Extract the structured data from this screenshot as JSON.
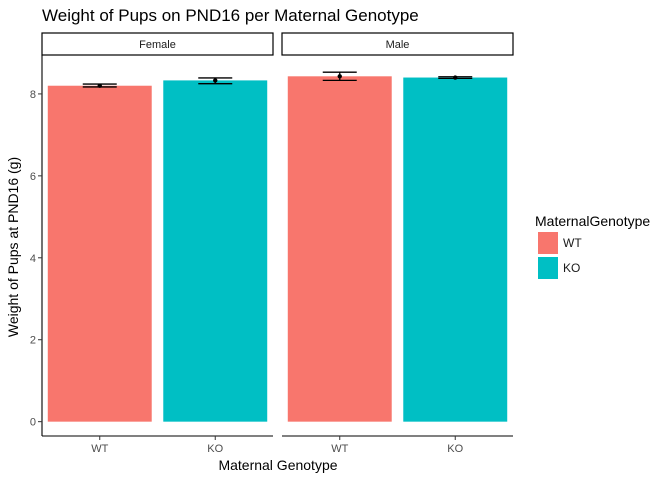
{
  "chart_data": {
    "type": "bar",
    "title": "Weight of Pups on PND16 per Maternal Genotype",
    "xlabel": "Maternal Genotype",
    "ylabel": "Weight of Pups at PND16 (g)",
    "ylim": [
      -0.35,
      8.95
    ],
    "yticks": [
      0,
      2,
      4,
      6,
      8
    ],
    "grid": false,
    "legend_position": "right",
    "legend": {
      "title": "MaternalGenotype",
      "entries": [
        {
          "label": "WT",
          "color": "#F8766D"
        },
        {
          "label": "KO",
          "color": "#00BFC4"
        }
      ]
    },
    "categories": [
      "WT",
      "KO"
    ],
    "panels": [
      {
        "name": "Female",
        "bars": [
          {
            "category": "WT",
            "value": 8.2,
            "error_low": 8.17,
            "error_high": 8.24
          },
          {
            "category": "KO",
            "value": 8.33,
            "error_low": 8.25,
            "error_high": 8.39
          }
        ]
      },
      {
        "name": "Male",
        "bars": [
          {
            "category": "WT",
            "value": 8.43,
            "error_low": 8.33,
            "error_high": 8.53
          },
          {
            "category": "KO",
            "value": 8.4,
            "error_low": 8.38,
            "error_high": 8.42
          }
        ]
      }
    ]
  }
}
